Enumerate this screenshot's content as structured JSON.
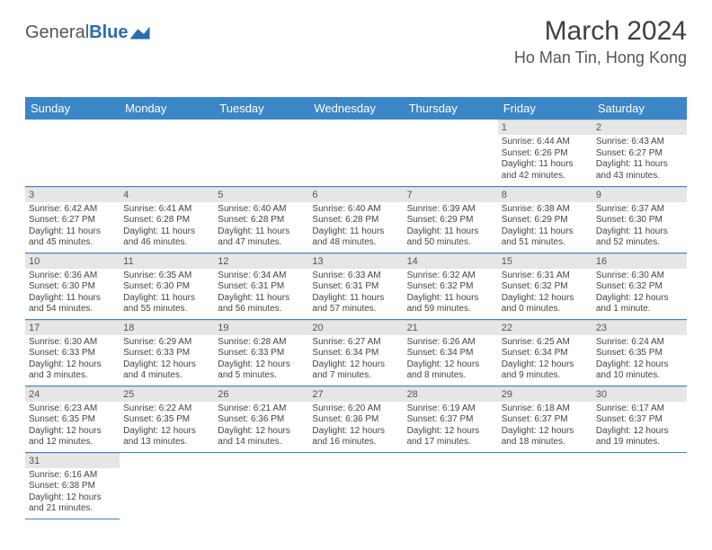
{
  "logo": {
    "text1": "General",
    "text2": "Blue"
  },
  "title": "March 2024",
  "subtitle": "Ho Man Tin, Hong Kong",
  "colors": {
    "header_bg": "#3b86c6",
    "header_text": "#ffffff",
    "daynum_bg": "#e6e6e6",
    "border": "#3b86c6",
    "body_text": "#444444"
  },
  "weekdays": [
    "Sunday",
    "Monday",
    "Tuesday",
    "Wednesday",
    "Thursday",
    "Friday",
    "Saturday"
  ],
  "weeks": [
    [
      null,
      null,
      null,
      null,
      null,
      {
        "n": "1",
        "sr": "Sunrise: 6:44 AM",
        "ss": "Sunset: 6:26 PM",
        "dl": "Daylight: 11 hours and 42 minutes."
      },
      {
        "n": "2",
        "sr": "Sunrise: 6:43 AM",
        "ss": "Sunset: 6:27 PM",
        "dl": "Daylight: 11 hours and 43 minutes."
      }
    ],
    [
      {
        "n": "3",
        "sr": "Sunrise: 6:42 AM",
        "ss": "Sunset: 6:27 PM",
        "dl": "Daylight: 11 hours and 45 minutes."
      },
      {
        "n": "4",
        "sr": "Sunrise: 6:41 AM",
        "ss": "Sunset: 6:28 PM",
        "dl": "Daylight: 11 hours and 46 minutes."
      },
      {
        "n": "5",
        "sr": "Sunrise: 6:40 AM",
        "ss": "Sunset: 6:28 PM",
        "dl": "Daylight: 11 hours and 47 minutes."
      },
      {
        "n": "6",
        "sr": "Sunrise: 6:40 AM",
        "ss": "Sunset: 6:28 PM",
        "dl": "Daylight: 11 hours and 48 minutes."
      },
      {
        "n": "7",
        "sr": "Sunrise: 6:39 AM",
        "ss": "Sunset: 6:29 PM",
        "dl": "Daylight: 11 hours and 50 minutes."
      },
      {
        "n": "8",
        "sr": "Sunrise: 6:38 AM",
        "ss": "Sunset: 6:29 PM",
        "dl": "Daylight: 11 hours and 51 minutes."
      },
      {
        "n": "9",
        "sr": "Sunrise: 6:37 AM",
        "ss": "Sunset: 6:30 PM",
        "dl": "Daylight: 11 hours and 52 minutes."
      }
    ],
    [
      {
        "n": "10",
        "sr": "Sunrise: 6:36 AM",
        "ss": "Sunset: 6:30 PM",
        "dl": "Daylight: 11 hours and 54 minutes."
      },
      {
        "n": "11",
        "sr": "Sunrise: 6:35 AM",
        "ss": "Sunset: 6:30 PM",
        "dl": "Daylight: 11 hours and 55 minutes."
      },
      {
        "n": "12",
        "sr": "Sunrise: 6:34 AM",
        "ss": "Sunset: 6:31 PM",
        "dl": "Daylight: 11 hours and 56 minutes."
      },
      {
        "n": "13",
        "sr": "Sunrise: 6:33 AM",
        "ss": "Sunset: 6:31 PM",
        "dl": "Daylight: 11 hours and 57 minutes."
      },
      {
        "n": "14",
        "sr": "Sunrise: 6:32 AM",
        "ss": "Sunset: 6:32 PM",
        "dl": "Daylight: 11 hours and 59 minutes."
      },
      {
        "n": "15",
        "sr": "Sunrise: 6:31 AM",
        "ss": "Sunset: 6:32 PM",
        "dl": "Daylight: 12 hours and 0 minutes."
      },
      {
        "n": "16",
        "sr": "Sunrise: 6:30 AM",
        "ss": "Sunset: 6:32 PM",
        "dl": "Daylight: 12 hours and 1 minute."
      }
    ],
    [
      {
        "n": "17",
        "sr": "Sunrise: 6:30 AM",
        "ss": "Sunset: 6:33 PM",
        "dl": "Daylight: 12 hours and 3 minutes."
      },
      {
        "n": "18",
        "sr": "Sunrise: 6:29 AM",
        "ss": "Sunset: 6:33 PM",
        "dl": "Daylight: 12 hours and 4 minutes."
      },
      {
        "n": "19",
        "sr": "Sunrise: 6:28 AM",
        "ss": "Sunset: 6:33 PM",
        "dl": "Daylight: 12 hours and 5 minutes."
      },
      {
        "n": "20",
        "sr": "Sunrise: 6:27 AM",
        "ss": "Sunset: 6:34 PM",
        "dl": "Daylight: 12 hours and 7 minutes."
      },
      {
        "n": "21",
        "sr": "Sunrise: 6:26 AM",
        "ss": "Sunset: 6:34 PM",
        "dl": "Daylight: 12 hours and 8 minutes."
      },
      {
        "n": "22",
        "sr": "Sunrise: 6:25 AM",
        "ss": "Sunset: 6:34 PM",
        "dl": "Daylight: 12 hours and 9 minutes."
      },
      {
        "n": "23",
        "sr": "Sunrise: 6:24 AM",
        "ss": "Sunset: 6:35 PM",
        "dl": "Daylight: 12 hours and 10 minutes."
      }
    ],
    [
      {
        "n": "24",
        "sr": "Sunrise: 6:23 AM",
        "ss": "Sunset: 6:35 PM",
        "dl": "Daylight: 12 hours and 12 minutes."
      },
      {
        "n": "25",
        "sr": "Sunrise: 6:22 AM",
        "ss": "Sunset: 6:35 PM",
        "dl": "Daylight: 12 hours and 13 minutes."
      },
      {
        "n": "26",
        "sr": "Sunrise: 6:21 AM",
        "ss": "Sunset: 6:36 PM",
        "dl": "Daylight: 12 hours and 14 minutes."
      },
      {
        "n": "27",
        "sr": "Sunrise: 6:20 AM",
        "ss": "Sunset: 6:36 PM",
        "dl": "Daylight: 12 hours and 16 minutes."
      },
      {
        "n": "28",
        "sr": "Sunrise: 6:19 AM",
        "ss": "Sunset: 6:37 PM",
        "dl": "Daylight: 12 hours and 17 minutes."
      },
      {
        "n": "29",
        "sr": "Sunrise: 6:18 AM",
        "ss": "Sunset: 6:37 PM",
        "dl": "Daylight: 12 hours and 18 minutes."
      },
      {
        "n": "30",
        "sr": "Sunrise: 6:17 AM",
        "ss": "Sunset: 6:37 PM",
        "dl": "Daylight: 12 hours and 19 minutes."
      }
    ],
    [
      {
        "n": "31",
        "sr": "Sunrise: 6:16 AM",
        "ss": "Sunset: 6:38 PM",
        "dl": "Daylight: 12 hours and 21 minutes."
      },
      null,
      null,
      null,
      null,
      null,
      null
    ]
  ]
}
